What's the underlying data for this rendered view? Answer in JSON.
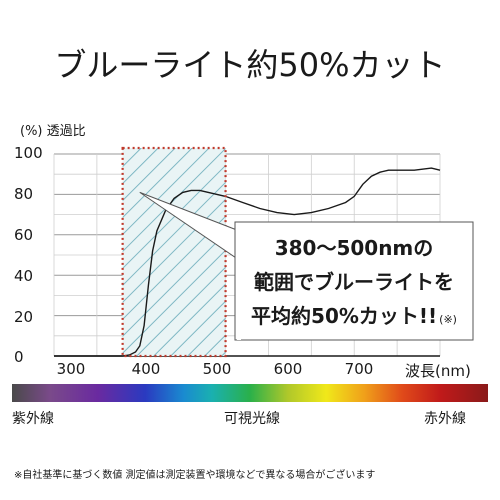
{
  "title": "ブルーライト約50%カット",
  "chart_data": {
    "type": "line",
    "ylabel": "(%) 透過比",
    "xlabel": "波長(nm)",
    "xlim": [
      300,
      750
    ],
    "ylim": [
      0,
      100
    ],
    "x_ticks": [
      "300",
      "400",
      "500",
      "600",
      "700"
    ],
    "y_ticks": [
      "100",
      "80",
      "60",
      "40",
      "20",
      "0"
    ],
    "grid": true,
    "series": [
      {
        "x": [
          300,
          360,
          380,
          388,
          395,
          400,
          405,
          410,
          415,
          420,
          430,
          440,
          450,
          460,
          470,
          480,
          490,
          500,
          520,
          540,
          560,
          580,
          600,
          620,
          640,
          650,
          660,
          670,
          680,
          690,
          700,
          720,
          740,
          750
        ],
        "y": [
          0,
          0,
          0,
          0.5,
          2,
          5,
          15,
          35,
          52,
          62,
          72,
          78,
          81,
          82,
          82,
          81,
          80,
          79,
          76,
          73,
          71,
          70,
          71,
          73,
          76,
          79,
          85,
          89,
          91,
          92,
          92,
          92,
          93,
          92
        ],
        "color": "#1a1a1a"
      }
    ],
    "highlight_range": [
      380,
      500
    ],
    "highlight_color": "#c0392b",
    "hatch_color": "#7fb8c4"
  },
  "callout": {
    "line1": "380〜500nmの",
    "line2": "範囲でブルーライトを",
    "line3": "平均約50%カット!!",
    "note": "(※)"
  },
  "spectrum_labels": {
    "left": "紫外線",
    "middle": "可視光線",
    "right": "赤外線"
  },
  "footnote": "※自社基準に基づく数値 測定値は測定装置や環境などで異なる場合がございます"
}
